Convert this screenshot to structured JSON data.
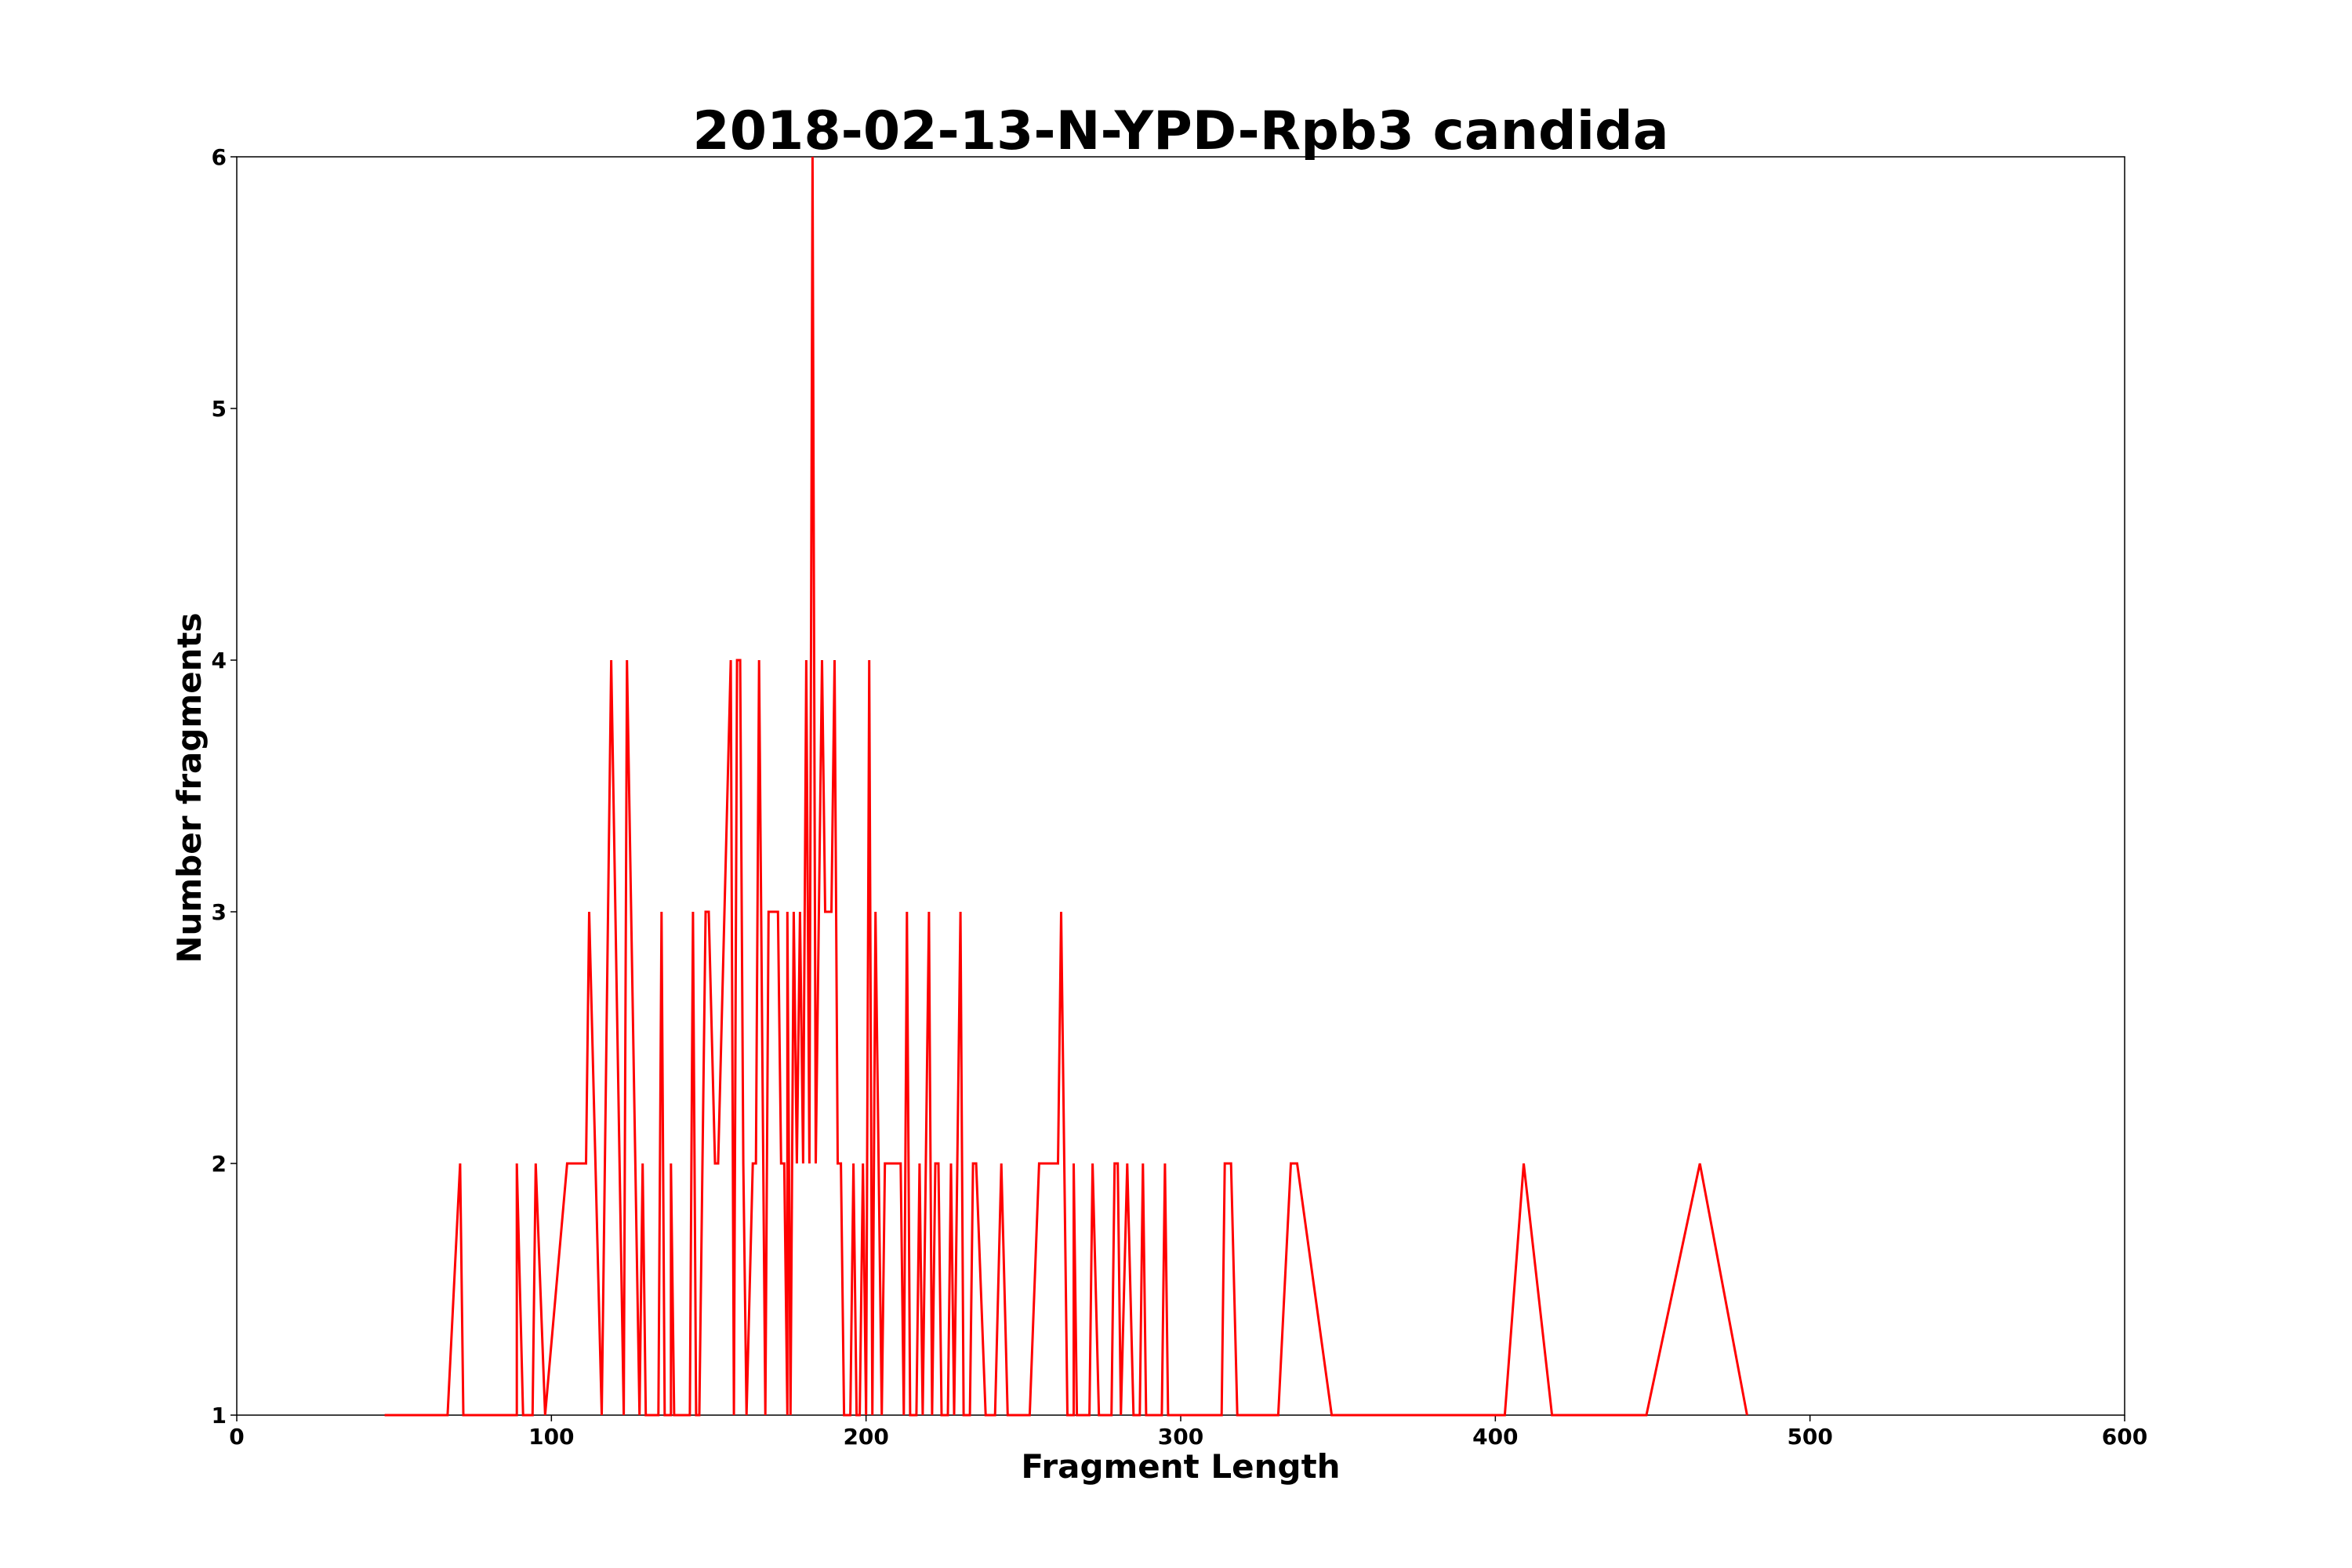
{
  "chart_data": {
    "type": "line",
    "title": "2018-02-13-N-YPD-Rpb3 candida",
    "xlabel": "Fragment Length",
    "ylabel": "Number fragments",
    "xlim": [
      0,
      600
    ],
    "ylim": [
      1,
      6
    ],
    "xticks": [
      "0",
      "100",
      "200",
      "300",
      "400",
      "500",
      "600"
    ],
    "yticks": [
      "1",
      "2",
      "3",
      "4",
      "5",
      "6"
    ],
    "grid": false,
    "legend": "none",
    "series": [
      {
        "color": "#ff0000",
        "points": [
          [
            47,
            1
          ],
          [
            67,
            1
          ],
          [
            71,
            2
          ],
          [
            72,
            1
          ],
          [
            89,
            1
          ],
          [
            89,
            2
          ],
          [
            91,
            1
          ],
          [
            94,
            1
          ],
          [
            95,
            2
          ],
          [
            98,
            1
          ],
          [
            105,
            2
          ],
          [
            111,
            2
          ],
          [
            112,
            3
          ],
          [
            116,
            1
          ],
          [
            119,
            4
          ],
          [
            123,
            1
          ],
          [
            124,
            4
          ],
          [
            128,
            1
          ],
          [
            129,
            2
          ],
          [
            130,
            1
          ],
          [
            134,
            1
          ],
          [
            135,
            3
          ],
          [
            136,
            1
          ],
          [
            138,
            1
          ],
          [
            138,
            2
          ],
          [
            139,
            1
          ],
          [
            144,
            1
          ],
          [
            145,
            3
          ],
          [
            146,
            1
          ],
          [
            147,
            1
          ],
          [
            149,
            3
          ],
          [
            150,
            3
          ],
          [
            152,
            2
          ],
          [
            153,
            2
          ],
          [
            157,
            4
          ],
          [
            158,
            1
          ],
          [
            159,
            4
          ],
          [
            160,
            4
          ],
          [
            161,
            2
          ],
          [
            162,
            1
          ],
          [
            164,
            2
          ],
          [
            165,
            2
          ],
          [
            166,
            4
          ],
          [
            168,
            1
          ],
          [
            169,
            3
          ],
          [
            172,
            3
          ],
          [
            173,
            2
          ],
          [
            174,
            2
          ],
          [
            175,
            1
          ],
          [
            175,
            3
          ],
          [
            176,
            1
          ],
          [
            177,
            3
          ],
          [
            178,
            2
          ],
          [
            179,
            3
          ],
          [
            180,
            2
          ],
          [
            181,
            4
          ],
          [
            182,
            2
          ],
          [
            183,
            6
          ],
          [
            184,
            2
          ],
          [
            186,
            4
          ],
          [
            187,
            3
          ],
          [
            189,
            3
          ],
          [
            190,
            4
          ],
          [
            191,
            2
          ],
          [
            192,
            2
          ],
          [
            193,
            1
          ],
          [
            195,
            1
          ],
          [
            196,
            2
          ],
          [
            197,
            1
          ],
          [
            198,
            1
          ],
          [
            199,
            2
          ],
          [
            200,
            1
          ],
          [
            201,
            4
          ],
          [
            202,
            1
          ],
          [
            203,
            3
          ],
          [
            204,
            2
          ],
          [
            205,
            1
          ],
          [
            206,
            2
          ],
          [
            211,
            2
          ],
          [
            212,
            1
          ],
          [
            213,
            3
          ],
          [
            214,
            1
          ],
          [
            216,
            1
          ],
          [
            217,
            2
          ],
          [
            218,
            1
          ],
          [
            220,
            3
          ],
          [
            221,
            1
          ],
          [
            222,
            2
          ],
          [
            223,
            2
          ],
          [
            224,
            1
          ],
          [
            226,
            1
          ],
          [
            227,
            2
          ],
          [
            228,
            1
          ],
          [
            230,
            3
          ],
          [
            231,
            1
          ],
          [
            233,
            1
          ],
          [
            234,
            2
          ],
          [
            235,
            2
          ],
          [
            238,
            1
          ],
          [
            241,
            1
          ],
          [
            243,
            2
          ],
          [
            245,
            1
          ],
          [
            252,
            1
          ],
          [
            255,
            2
          ],
          [
            261,
            2
          ],
          [
            262,
            3
          ],
          [
            264,
            1
          ],
          [
            266,
            1
          ],
          [
            266,
            2
          ],
          [
            267,
            1
          ],
          [
            271,
            1
          ],
          [
            272,
            2
          ],
          [
            274,
            1
          ],
          [
            278,
            1
          ],
          [
            279,
            2
          ],
          [
            280,
            2
          ],
          [
            281,
            1
          ],
          [
            283,
            2
          ],
          [
            285,
            1
          ],
          [
            287,
            1
          ],
          [
            288,
            2
          ],
          [
            289,
            1
          ],
          [
            294,
            1
          ],
          [
            295,
            2
          ],
          [
            296,
            1
          ],
          [
            313,
            1
          ],
          [
            314,
            2
          ],
          [
            316,
            2
          ],
          [
            318,
            1
          ],
          [
            331,
            1
          ],
          [
            335,
            2
          ],
          [
            337,
            2
          ],
          [
            348,
            1
          ],
          [
            403,
            1
          ],
          [
            409,
            2
          ],
          [
            418,
            1
          ],
          [
            448,
            1
          ],
          [
            465,
            2
          ],
          [
            480,
            1
          ]
        ]
      }
    ]
  }
}
